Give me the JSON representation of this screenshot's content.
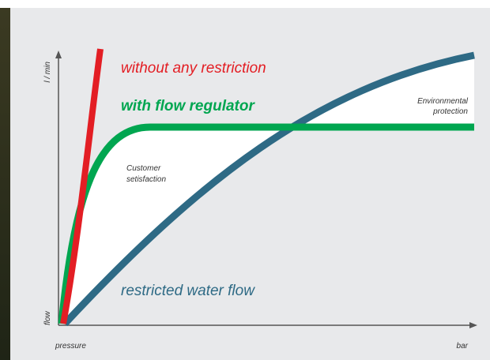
{
  "axes": {
    "y_top": "l / min",
    "y_bottom": "flow",
    "x_left": "pressure",
    "x_right": "bar"
  },
  "curves": {
    "red": "without any restriction",
    "green": "with flow regulator",
    "blue": "restricted water flow"
  },
  "regions": {
    "left": [
      "Customer",
      "setisfaction"
    ],
    "right": [
      "Environmental",
      "protection"
    ]
  }
}
